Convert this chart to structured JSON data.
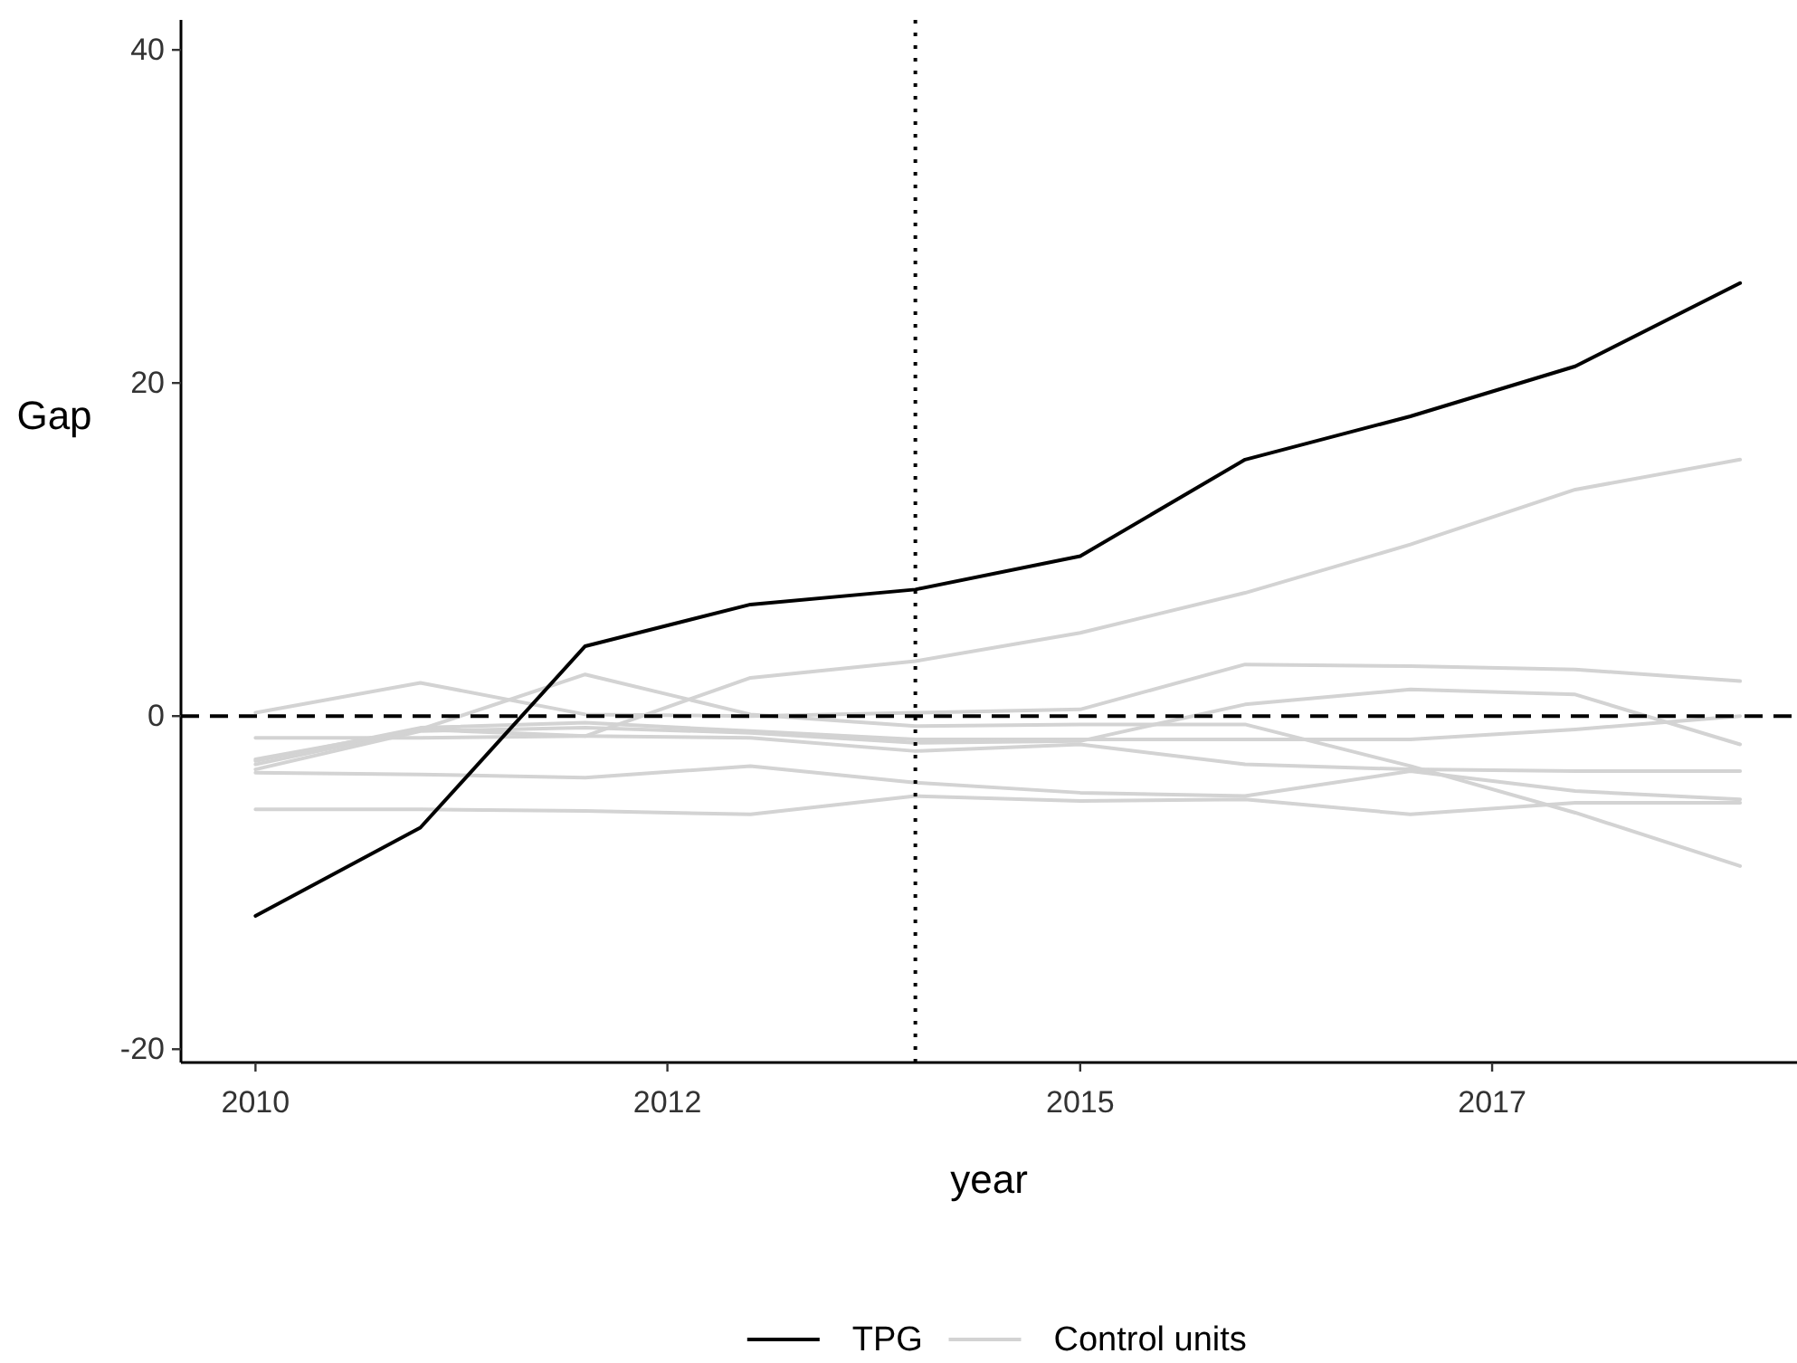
{
  "chart_data": {
    "type": "line",
    "xlabel": "year",
    "ylabel": "Gap",
    "x": [
      "2010",
      "2011",
      "2012",
      "2013",
      "2014",
      "2015",
      "2016",
      "2017",
      "2018",
      "2019"
    ],
    "series": [
      {
        "name": "TPG",
        "color": "#000000",
        "values": [
          -12.0,
          -6.7,
          4.2,
          6.7,
          7.6,
          9.6,
          15.4,
          18.0,
          21.0,
          26.0
        ]
      },
      {
        "name": "Control units",
        "color": "#d3d3d3",
        "values": [
          -2.6,
          -0.8,
          -1.2,
          2.3,
          3.3,
          5.0,
          7.4,
          10.3,
          13.6,
          15.4
        ]
      },
      {
        "color": "#d3d3d3",
        "values": [
          0.2,
          2.0,
          0.1,
          0.0,
          0.2,
          0.4,
          3.1,
          3.0,
          2.8,
          2.1
        ]
      },
      {
        "color": "#d3d3d3",
        "values": [
          -2.9,
          -0.8,
          2.5,
          0.1,
          -0.6,
          -0.5,
          -0.5,
          -3.0,
          -5.8,
          -9.0
        ]
      },
      {
        "color": "#d3d3d3",
        "values": [
          -3.2,
          -0.9,
          -0.7,
          -1.0,
          -1.6,
          -1.5,
          0.7,
          1.6,
          1.3,
          -1.7
        ]
      },
      {
        "color": "#d3d3d3",
        "values": [
          -1.3,
          -1.3,
          -1.2,
          -1.3,
          -2.1,
          -1.7,
          -2.9,
          -3.2,
          -3.3,
          -3.3
        ]
      },
      {
        "color": "#d3d3d3",
        "values": [
          -3.4,
          -3.5,
          -3.7,
          -3.0,
          -4.0,
          -4.6,
          -4.8,
          -3.3,
          -4.5,
          -5.0
        ]
      },
      {
        "color": "#d3d3d3",
        "values": [
          -5.6,
          -5.6,
          -5.7,
          -5.9,
          -4.8,
          -5.1,
          -5.0,
          -5.9,
          -5.2,
          -5.2
        ]
      },
      {
        "color": "#d3d3d3",
        "values": [
          -2.7,
          -0.7,
          -0.4,
          -0.9,
          -1.4,
          -1.4,
          -1.4,
          -1.4,
          -0.8,
          0.0
        ]
      }
    ],
    "xlim": [
      "2009-07-20",
      "2019-05-07"
    ],
    "xticks": [
      {
        "value": "2010",
        "label": "2010"
      },
      {
        "value": "2012-07",
        "label": "2012"
      },
      {
        "value": "2015",
        "label": "2015"
      },
      {
        "value": "2017-07",
        "label": "2017"
      }
    ],
    "ylim": [
      -20.8,
      41.8
    ],
    "yticks": [
      -20,
      0,
      20,
      40
    ],
    "ref_lines": [
      {
        "axis": "y",
        "value": 0,
        "color": "#000000",
        "line_style": "dashed"
      },
      {
        "axis": "x",
        "value": "2014",
        "color": "#000000",
        "line_style": "dotted"
      }
    ],
    "legend": "bottom"
  }
}
